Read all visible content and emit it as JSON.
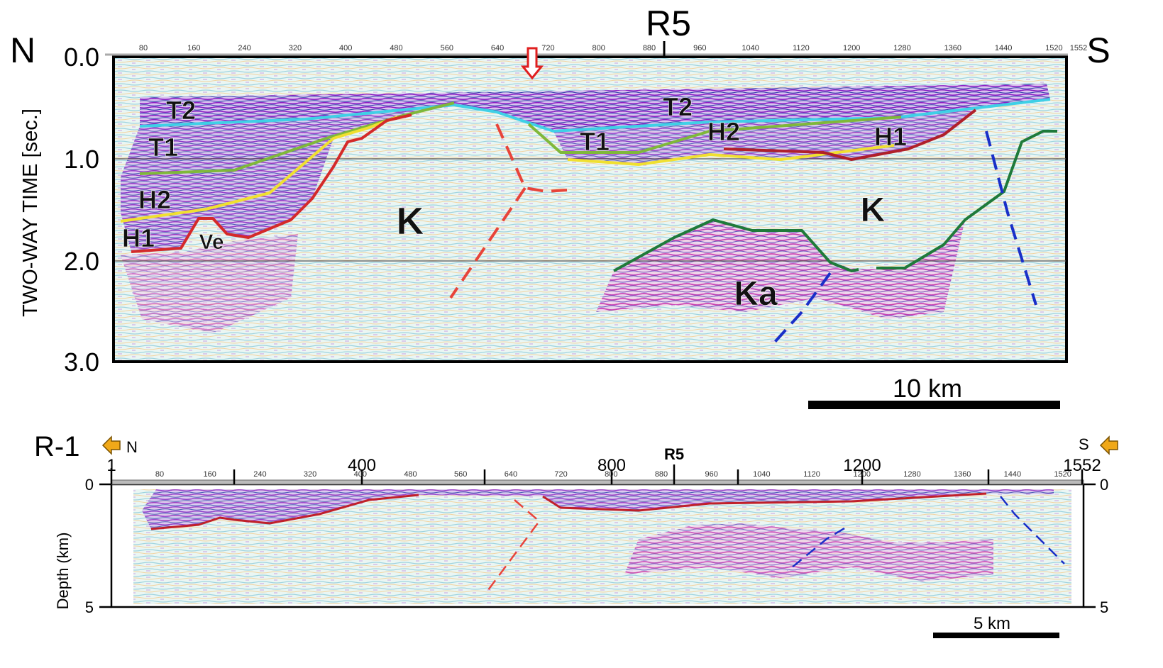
{
  "top_section": {
    "left_label": "N",
    "right_label": "S",
    "marker": "R5",
    "y_axis_label": "TWO-WAY TIME [sec.]",
    "y_ticks": [
      "0.0",
      "1.0",
      "2.0",
      "3.0"
    ],
    "cdp_ticks": [
      "80",
      "160",
      "240",
      "320",
      "400",
      "480",
      "560",
      "640",
      "720",
      "800",
      "880",
      "960",
      "1040",
      "1120",
      "1200",
      "1280",
      "1360",
      "1440",
      "1520"
    ],
    "cdp_end": "1552",
    "horizon_labels": [
      "T2",
      "T1",
      "H2",
      "H1",
      "Ve",
      "K",
      "T2",
      "T1",
      "H2",
      "H1",
      "K",
      "Ka"
    ],
    "scale_bar": "10 km"
  },
  "bottom_section": {
    "title": "R-1",
    "left_label": "N",
    "right_label": "S",
    "marker": "R5",
    "major_ticks": [
      "1",
      "400",
      "800",
      "1200",
      "1552"
    ],
    "cdp_ticks": [
      "80",
      "160",
      "240",
      "320",
      "400",
      "480",
      "560",
      "640",
      "720",
      "800",
      "880",
      "960",
      "1040",
      "1120",
      "1200",
      "1280",
      "1360",
      "1440",
      "1520"
    ],
    "y_axis_label": "Depth (km)",
    "y_ticks": [
      "0",
      "5"
    ],
    "right_y_ticks": [
      "0",
      "5"
    ],
    "scale_bar": "5 km"
  }
}
